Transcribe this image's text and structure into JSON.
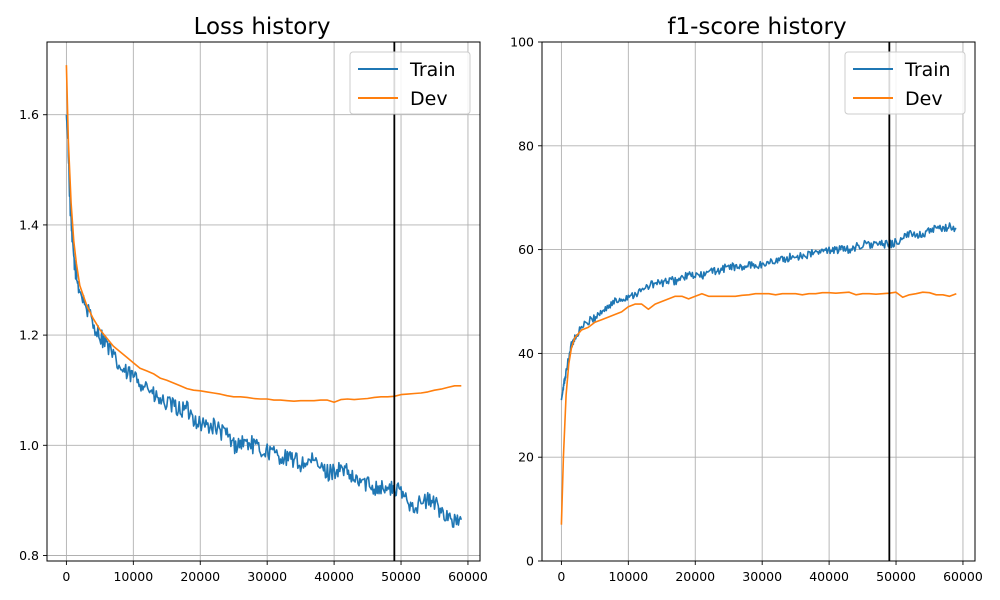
{
  "chart_data": [
    {
      "type": "line",
      "title": "Loss history",
      "xlabel": "",
      "ylabel": "",
      "xlim": [
        -2900,
        61800
      ],
      "ylim": [
        0.79,
        1.732
      ],
      "x_ticks": [
        0,
        10000,
        20000,
        30000,
        40000,
        50000,
        60000
      ],
      "y_ticks": [
        0.8,
        1.0,
        1.2,
        1.4,
        1.6
      ],
      "x_tick_labels": [
        "0",
        "10000",
        "20000",
        "30000",
        "40000",
        "50000",
        "60000"
      ],
      "y_tick_labels": [
        "0.8",
        "1.0",
        "1.2",
        "1.4",
        "1.6"
      ],
      "grid": true,
      "legend_position": "top-right",
      "vline_x": 49000,
      "series": [
        {
          "name": "Train",
          "color": "#1f77b4",
          "noise": 0.016,
          "x": [
            0,
            250,
            500,
            800,
            1200,
            1600,
            2000,
            3000,
            4000,
            5000,
            6000,
            7000,
            8000,
            9000,
            10000,
            11000,
            12000,
            13000,
            14000,
            15000,
            16000,
            17000,
            18000,
            19000,
            20000,
            21000,
            22000,
            23000,
            24000,
            25000,
            26000,
            27000,
            28000,
            29000,
            30000,
            31000,
            32000,
            33000,
            34000,
            35000,
            36000,
            37000,
            38000,
            39000,
            40000,
            41000,
            42000,
            43000,
            44000,
            45000,
            46000,
            47000,
            48000,
            49000,
            50000,
            51000,
            52000,
            53000,
            54000,
            55000,
            56000,
            57000,
            58000,
            59000
          ],
          "y": [
            1.6,
            1.55,
            1.45,
            1.38,
            1.33,
            1.3,
            1.28,
            1.25,
            1.22,
            1.2,
            1.185,
            1.16,
            1.14,
            1.13,
            1.125,
            1.115,
            1.11,
            1.09,
            1.08,
            1.075,
            1.07,
            1.065,
            1.065,
            1.05,
            1.04,
            1.035,
            1.035,
            1.025,
            1.02,
            1.0,
            1.005,
            1.005,
            1.0,
            0.99,
            0.99,
            0.985,
            0.98,
            0.975,
            0.975,
            0.965,
            0.97,
            0.97,
            0.96,
            0.95,
            0.955,
            0.955,
            0.95,
            0.935,
            0.935,
            0.93,
            0.925,
            0.925,
            0.92,
            0.92,
            0.915,
            0.9,
            0.89,
            0.895,
            0.9,
            0.895,
            0.88,
            0.875,
            0.86,
            0.865
          ]
        },
        {
          "name": "Dev",
          "color": "#ff7f0e",
          "noise": 0,
          "x": [
            0,
            300,
            700,
            1100,
            1500,
            2000,
            3000,
            4000,
            5000,
            6000,
            7000,
            8000,
            9000,
            10000,
            11000,
            12000,
            13000,
            14000,
            15000,
            16000,
            17000,
            18000,
            19000,
            20000,
            21000,
            22000,
            23000,
            24000,
            25000,
            26000,
            27000,
            28000,
            29000,
            30000,
            31000,
            32000,
            33000,
            34000,
            35000,
            36000,
            37000,
            38000,
            39000,
            40000,
            41000,
            42000,
            43000,
            44000,
            45000,
            46000,
            47000,
            48000,
            49000,
            50000,
            51000,
            52000,
            53000,
            54000,
            55000,
            56000,
            57000,
            58000,
            59000
          ],
          "y": [
            1.69,
            1.55,
            1.44,
            1.37,
            1.33,
            1.29,
            1.255,
            1.23,
            1.21,
            1.195,
            1.18,
            1.17,
            1.16,
            1.15,
            1.14,
            1.135,
            1.13,
            1.122,
            1.118,
            1.113,
            1.108,
            1.103,
            1.1,
            1.099,
            1.097,
            1.095,
            1.093,
            1.09,
            1.088,
            1.088,
            1.087,
            1.085,
            1.084,
            1.084,
            1.082,
            1.082,
            1.081,
            1.08,
            1.081,
            1.081,
            1.081,
            1.082,
            1.082,
            1.078,
            1.083,
            1.084,
            1.083,
            1.084,
            1.085,
            1.087,
            1.088,
            1.088,
            1.089,
            1.092,
            1.093,
            1.094,
            1.095,
            1.097,
            1.1,
            1.102,
            1.105,
            1.108,
            1.108
          ]
        }
      ]
    },
    {
      "type": "line",
      "title": "f1-score history",
      "xlabel": "",
      "ylabel": "",
      "xlim": [
        -2900,
        61800
      ],
      "ylim": [
        0,
        100
      ],
      "x_ticks": [
        0,
        10000,
        20000,
        30000,
        40000,
        50000,
        60000
      ],
      "y_ticks": [
        0,
        20,
        40,
        60,
        80,
        100
      ],
      "x_tick_labels": [
        "0",
        "10000",
        "20000",
        "30000",
        "40000",
        "50000",
        "60000"
      ],
      "y_tick_labels": [
        "0",
        "20",
        "40",
        "60",
        "80",
        "100"
      ],
      "grid": true,
      "legend_position": "top-right",
      "vline_x": 49000,
      "series": [
        {
          "name": "Train",
          "color": "#1f77b4",
          "noise": 0.8,
          "x": [
            0,
            250,
            500,
            800,
            1200,
            1600,
            2000,
            3000,
            4000,
            5000,
            6000,
            7000,
            8000,
            9000,
            10000,
            11000,
            12000,
            13000,
            14000,
            15000,
            16000,
            17000,
            18000,
            19000,
            20000,
            21000,
            22000,
            23000,
            24000,
            25000,
            26000,
            27000,
            28000,
            29000,
            30000,
            31000,
            32000,
            33000,
            34000,
            35000,
            36000,
            37000,
            38000,
            39000,
            40000,
            41000,
            42000,
            43000,
            44000,
            45000,
            46000,
            47000,
            48000,
            49000,
            50000,
            51000,
            52000,
            53000,
            54000,
            55000,
            56000,
            57000,
            58000,
            59000
          ],
          "y": [
            31,
            33,
            35,
            37,
            40,
            42,
            43,
            45,
            46,
            47,
            48,
            49,
            50,
            50.5,
            51,
            51.5,
            52,
            53,
            53.5,
            53.5,
            54,
            54,
            54.5,
            55,
            55,
            55,
            55.5,
            56,
            56,
            57,
            56.5,
            56.5,
            57,
            57,
            57,
            57.5,
            58,
            58,
            58.5,
            58.5,
            59,
            59,
            59.5,
            59.5,
            60,
            60,
            60,
            60,
            60.5,
            61,
            61,
            61,
            61,
            61,
            61.5,
            62,
            63,
            63,
            63,
            63.5,
            64,
            64,
            64.5,
            64
          ]
        },
        {
          "name": "Dev",
          "color": "#ff7f0e",
          "noise": 0,
          "x": [
            0,
            300,
            700,
            1100,
            1500,
            2000,
            3000,
            4000,
            5000,
            6000,
            7000,
            8000,
            9000,
            10000,
            11000,
            12000,
            13000,
            14000,
            15000,
            16000,
            17000,
            18000,
            19000,
            20000,
            21000,
            22000,
            23000,
            24000,
            25000,
            26000,
            27000,
            28000,
            29000,
            30000,
            31000,
            32000,
            33000,
            34000,
            35000,
            36000,
            37000,
            38000,
            39000,
            40000,
            41000,
            42000,
            43000,
            44000,
            45000,
            46000,
            47000,
            48000,
            49000,
            50000,
            51000,
            52000,
            53000,
            54000,
            55000,
            56000,
            57000,
            58000,
            59000
          ],
          "y": [
            7,
            20,
            32,
            38,
            41,
            43,
            44.5,
            45,
            46,
            46.5,
            47,
            47.5,
            48,
            49,
            49.5,
            49.5,
            48.5,
            49.5,
            50,
            50.5,
            51,
            51,
            50.5,
            51,
            51.5,
            51,
            51,
            51,
            51,
            51,
            51.2,
            51.3,
            51.5,
            51.5,
            51.5,
            51.3,
            51.5,
            51.5,
            51.5,
            51.3,
            51.5,
            51.5,
            51.7,
            51.7,
            51.6,
            51.7,
            51.8,
            51.3,
            51.5,
            51.5,
            51.4,
            51.5,
            51.6,
            51.8,
            50.8,
            51.3,
            51.5,
            51.8,
            51.7,
            51.3,
            51.3,
            51,
            51.5
          ]
        }
      ]
    }
  ]
}
